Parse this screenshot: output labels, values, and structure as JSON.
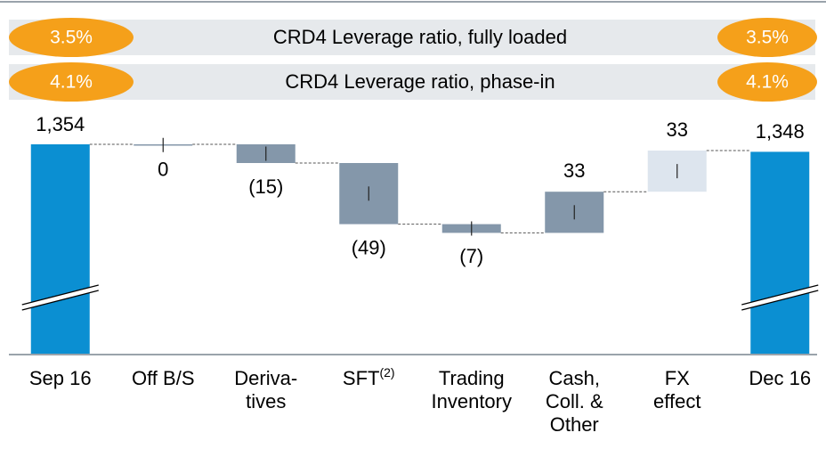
{
  "ratio_banners": [
    {
      "label": "CRD4 Leverage ratio, fully loaded",
      "start": "3.5%",
      "end": "3.5%"
    },
    {
      "label": "CRD4 Leverage ratio, phase-in",
      "start": "4.1%",
      "end": "4.1%"
    }
  ],
  "chart_data": {
    "type": "waterfall",
    "categories": [
      [
        "Sep 16"
      ],
      [
        "Off B/S"
      ],
      [
        "Deriva-",
        "tives"
      ],
      [
        "SFT"
      ],
      [
        "Trading",
        "Inventory"
      ],
      [
        "Cash,",
        "Coll. &",
        "Other"
      ],
      [
        "FX",
        "effect"
      ],
      [
        "Dec 16"
      ]
    ],
    "category_superscripts": [
      null,
      null,
      null,
      "(2)",
      null,
      null,
      null,
      null
    ],
    "measures": [
      "total",
      "relative",
      "relative",
      "relative",
      "relative",
      "relative",
      "relative",
      "total"
    ],
    "values": [
      1354,
      0,
      -15,
      -49,
      -7,
      33,
      33,
      1348
    ],
    "value_labels": [
      "1,354",
      "0",
      "(15)",
      "(49)",
      "(7)",
      "33",
      "33",
      "1,348"
    ],
    "colors": [
      "#0b8fd2",
      "#8497aa",
      "#8497aa",
      "#8497aa",
      "#8497aa",
      "#8497aa",
      "#dde5ee",
      "#0b8fd2"
    ]
  }
}
